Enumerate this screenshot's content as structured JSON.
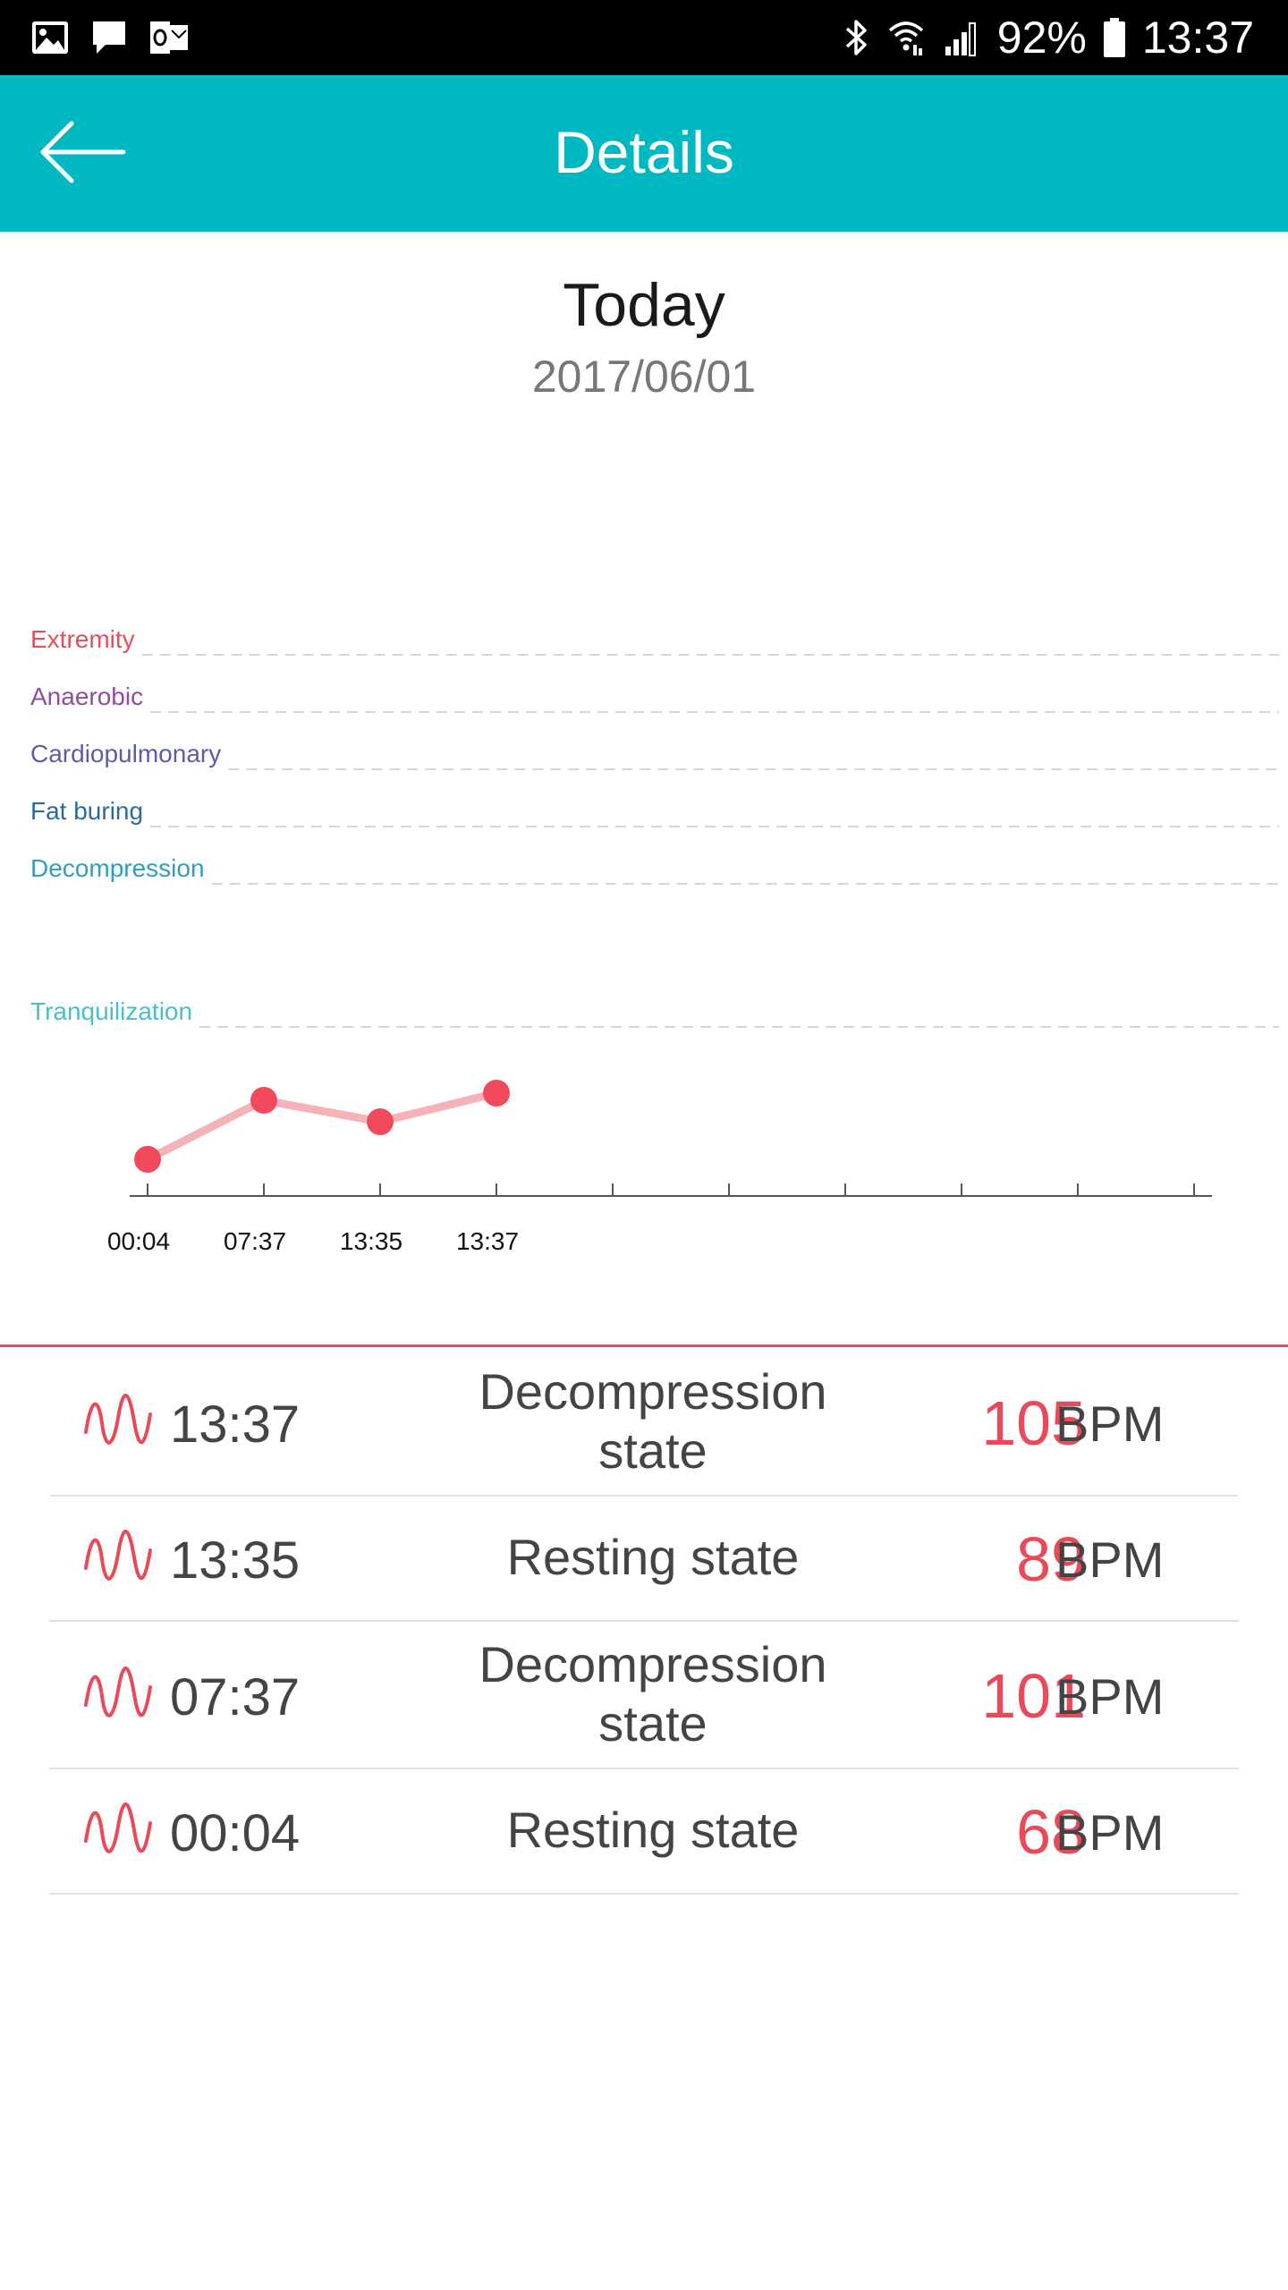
{
  "status_bar": {
    "icons_left": [
      "image-icon",
      "message-icon",
      "outlook-icon"
    ],
    "icons_right": [
      "bluetooth-icon",
      "wifi-icon",
      "signal-icon"
    ],
    "battery": "92%",
    "time": "13:37"
  },
  "app_bar": {
    "title": "Details",
    "back_icon": "arrow-left-icon",
    "color": "#00b8c2"
  },
  "header": {
    "title": "Today",
    "date": "2017/06/01"
  },
  "chart_data": {
    "type": "line",
    "zones": [
      {
        "label": "Extremity",
        "color": "#e0505e"
      },
      {
        "label": "Anaerobic",
        "color": "#8e4d9e"
      },
      {
        "label": "Cardiopulmonary",
        "color": "#5b5ea6"
      },
      {
        "label": "Fat buring",
        "color": "#2e6aa0"
      },
      {
        "label": "Decompression",
        "color": "#2e9fc0"
      },
      {
        "label": "Tranquilization",
        "color": "#49c0c8"
      }
    ],
    "x": [
      "00:04",
      "07:37",
      "13:35",
      "13:37"
    ],
    "y": [
      68,
      101,
      89,
      105
    ],
    "series": [
      {
        "values": [
          68,
          101,
          89,
          105
        ]
      }
    ],
    "line_color": "#f5b3b8",
    "point_color": "#f04a5c"
  },
  "records": [
    {
      "time": "13:37",
      "state_line1": "Decompression",
      "state_line2": "state",
      "bpm": "105",
      "unit": "BPM"
    },
    {
      "time": "13:35",
      "state_line1": "Resting state",
      "state_line2": "",
      "bpm": "89",
      "unit": "BPM"
    },
    {
      "time": "07:37",
      "state_line1": "Decompression",
      "state_line2": "state",
      "bpm": "101",
      "unit": "BPM"
    },
    {
      "time": "00:04",
      "state_line1": "Resting state",
      "state_line2": "",
      "bpm": "68",
      "unit": "BPM"
    }
  ]
}
